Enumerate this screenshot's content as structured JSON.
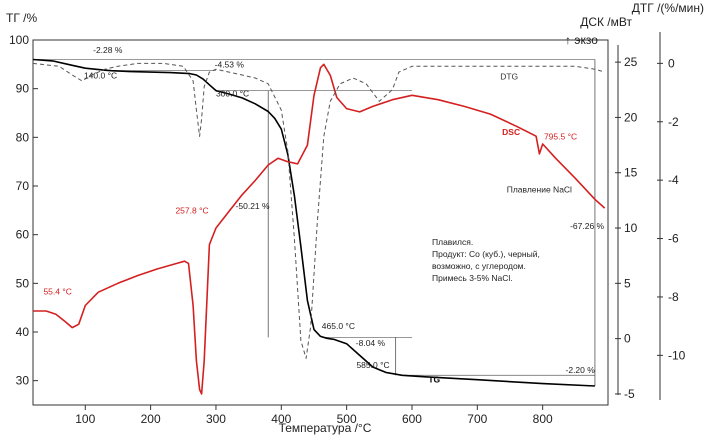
{
  "chart_data": {
    "type": "line",
    "x_range": [
      20,
      900
    ],
    "x_ticks": [
      100,
      200,
      300,
      400,
      500,
      600,
      700,
      800
    ],
    "xlabel": "Температура /°C",
    "axes": {
      "tg": {
        "title": "ТГ /%",
        "range": [
          25,
          100
        ],
        "ticks": [
          30,
          40,
          50,
          60,
          70,
          80,
          90,
          100
        ]
      },
      "dsc": {
        "title": "ДСК /мВт",
        "range": [
          -6,
          27
        ],
        "ticks": [
          -5,
          0,
          5,
          10,
          15,
          20,
          25
        ],
        "exo_label": "↑ экзо"
      },
      "dtg": {
        "title": "ДТГ /(%/мин)",
        "range": [
          -11.7,
          0.8
        ],
        "ticks": [
          -10,
          -8,
          -6,
          -4,
          -2,
          0
        ]
      }
    },
    "series": [
      {
        "name": "TG",
        "axis": "tg",
        "color": "#000000",
        "style": "solid",
        "x": [
          20,
          50,
          80,
          100,
          130,
          140,
          170,
          200,
          230,
          260,
          270,
          280,
          290,
          300,
          320,
          340,
          360,
          380,
          390,
          400,
          410,
          420,
          430,
          440,
          450,
          460,
          470,
          480,
          500,
          520,
          540,
          560,
          585,
          620,
          700,
          800,
          880
        ],
        "y": [
          96.0,
          95.7,
          94.8,
          94.2,
          93.8,
          93.7,
          93.5,
          93.4,
          93.3,
          93.1,
          92.8,
          92.0,
          90.8,
          89.6,
          88.9,
          88.1,
          86.9,
          85.3,
          83.9,
          81.7,
          76.5,
          68.0,
          57.5,
          46.5,
          40.5,
          39.1,
          38.7,
          38.5,
          37.6,
          35.2,
          32.8,
          31.7,
          31.1,
          30.8,
          30.2,
          29.4,
          28.9
        ]
      },
      {
        "name": "DSC",
        "axis": "dsc",
        "color": "#d42020",
        "style": "solid",
        "x": [
          20,
          40,
          55,
          70,
          80,
          90,
          100,
          120,
          150,
          180,
          210,
          240,
          252,
          258,
          265,
          270,
          275,
          278,
          282,
          290,
          300,
          320,
          340,
          360,
          380,
          395,
          410,
          425,
          440,
          450,
          460,
          465,
          475,
          485,
          500,
          520,
          540,
          570,
          600,
          640,
          680,
          720,
          760,
          790,
          795,
          800,
          820,
          850,
          880,
          895
        ],
        "y": [
          2.5,
          2.5,
          2.2,
          1.5,
          1.0,
          1.3,
          3.0,
          4.2,
          5.0,
          5.7,
          6.3,
          6.8,
          7.0,
          6.8,
          3.0,
          -2.0,
          -4.6,
          -5.0,
          -2.0,
          8.5,
          10.0,
          11.5,
          13.0,
          14.3,
          15.7,
          16.3,
          16.0,
          15.8,
          17.5,
          22.0,
          24.5,
          24.8,
          23.8,
          21.8,
          20.8,
          20.5,
          21.0,
          21.6,
          22.0,
          21.6,
          21.0,
          20.3,
          19.2,
          18.3,
          16.7,
          17.6,
          16.3,
          14.5,
          12.6,
          11.8
        ]
      },
      {
        "name": "DTG",
        "axis": "dtg",
        "color": "#555555",
        "style": "dashed",
        "x": [
          20,
          60,
          80,
          95,
          110,
          130,
          150,
          180,
          220,
          250,
          265,
          270,
          275,
          278,
          282,
          290,
          300,
          320,
          340,
          360,
          380,
          400,
          410,
          420,
          430,
          438,
          445,
          455,
          465,
          475,
          490,
          510,
          530,
          550,
          570,
          580,
          600,
          650,
          700,
          800,
          850,
          880,
          895
        ],
        "y": [
          0.0,
          -0.1,
          -0.4,
          -0.6,
          -0.4,
          -0.2,
          -0.1,
          0.0,
          0.0,
          -0.1,
          -0.6,
          -1.6,
          -2.5,
          -1.9,
          -0.8,
          -0.3,
          -0.2,
          -0.3,
          -0.4,
          -0.5,
          -0.7,
          -1.6,
          -3.0,
          -6.0,
          -9.5,
          -10.1,
          -9.0,
          -5.5,
          -2.5,
          -1.3,
          -0.7,
          -0.5,
          -0.7,
          -1.3,
          -0.9,
          -0.3,
          -0.1,
          -0.1,
          -0.1,
          -0.1,
          -0.1,
          -0.2,
          -0.3
        ]
      }
    ],
    "series_labels": [
      {
        "text": "TG",
        "series": "TG",
        "x": 625,
        "y_axis": "tg",
        "y": 29.6,
        "color": "#000000",
        "bold": true
      },
      {
        "text": "DSC",
        "series": "DSC",
        "x": 738,
        "y_axis": "dsc",
        "y": 18.4,
        "color": "#d42020",
        "bold": true
      },
      {
        "text": "DTG",
        "series": "DTG",
        "x": 735,
        "y_axis": "dtg",
        "y": -0.55,
        "color": "#333333",
        "bold": false
      }
    ],
    "annotations": [
      {
        "text": "-2.28 %",
        "x": 112,
        "y_axis": "tg",
        "y": 97.3,
        "color": "#222222"
      },
      {
        "text": "140.0 °C",
        "x": 98,
        "y_axis": "tg",
        "y": 92.1,
        "color": "#222222"
      },
      {
        "text": "-4.53 %",
        "x": 298,
        "y_axis": "tg",
        "y": 94.4,
        "color": "#222222"
      },
      {
        "text": "300.0 °C",
        "x": 300,
        "y_axis": "tg",
        "y": 88.4,
        "color": "#222222"
      },
      {
        "text": "-50.21 %",
        "x": 330,
        "y_axis": "tg",
        "y": 65.3,
        "color": "#222222"
      },
      {
        "text": "465.0 °C",
        "x": 462,
        "y_axis": "tg",
        "y": 40.6,
        "color": "#222222"
      },
      {
        "text": "-8.04 %",
        "x": 514,
        "y_axis": "tg",
        "y": 37.1,
        "color": "#222222"
      },
      {
        "text": "585.0 °C",
        "x": 515,
        "y_axis": "tg",
        "y": 32.6,
        "color": "#222222"
      },
      {
        "text": "-2.20 %",
        "x": 835,
        "y_axis": "tg",
        "y": 31.6,
        "color": "#222222"
      },
      {
        "text": "-67.26 %",
        "x": 842,
        "y_axis": "tg",
        "y": 61.2,
        "color": "#222222"
      },
      {
        "text": "55.4 °C",
        "x": 36,
        "y_axis": "dsc",
        "y": 4.0,
        "color": "#d42020"
      },
      {
        "text": "257.8 °C",
        "x": 238,
        "y_axis": "dsc",
        "y": 11.3,
        "color": "#d42020"
      },
      {
        "text": "795.5 °C",
        "x": 802,
        "y_axis": "dsc",
        "y": 18.0,
        "color": "#d42020"
      },
      {
        "text": "Плавление NaCl",
        "x": 745,
        "y_axis": "dsc",
        "y": 13.2,
        "color": "#222222"
      }
    ],
    "notes": [
      "Плавился.",
      "Продукт: Со (куб.), черный,",
      "возможно, с углеродом.",
      "Примесь 3-5% NaCl."
    ]
  }
}
